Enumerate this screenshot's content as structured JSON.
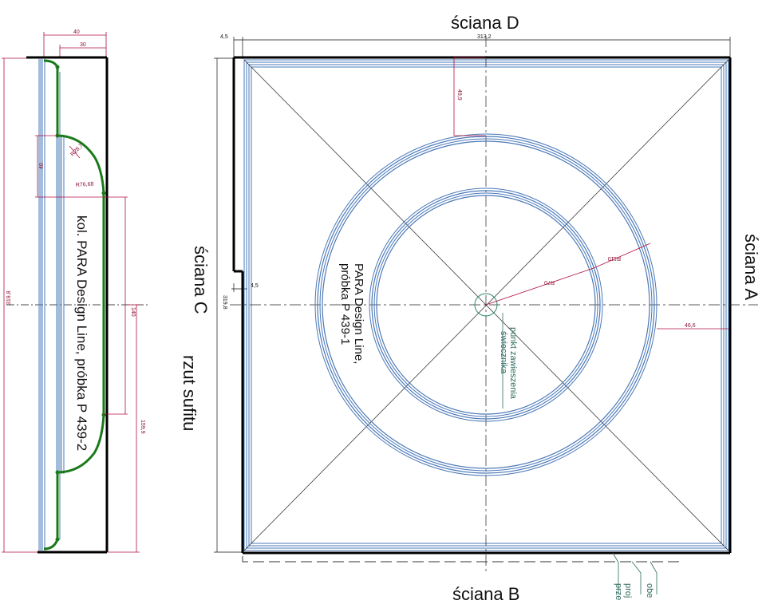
{
  "walls": {
    "top": "ściana D",
    "right": "ściana A",
    "bottom": "ściana B",
    "left": "ściana C"
  },
  "view_title": "rzut sufitu",
  "samples": {
    "section": "kol. PARA Design Line, próbka P 439-2",
    "plan_line1": "PARA Design Line,",
    "plan_line2": "próbka P 439-1"
  },
  "notes": {
    "hanging_point_line1": "punkt zawieszenia",
    "hanging_point_line2": "świecznika",
    "bottom_note1": "obe",
    "bottom_note2": "proj",
    "bottom_note3": "prze"
  },
  "dimensions": {
    "section_width_outer": "40",
    "section_width_inner": "30",
    "section_height": "319,8",
    "section_profile_height": "40",
    "section_r1": "R28,7",
    "section_r2": "R76,68",
    "section_center_span": "140",
    "section_lower": "159,9",
    "plan_offset_top": "4,5",
    "plan_width": "313,2",
    "plan_ring_offset": "49,9",
    "plan_height": "319,8",
    "plan_offset_left": "4,5",
    "plan_r_inner": "R70",
    "plan_r_outer": "R110",
    "plan_side_offset": "46,6"
  },
  "colors": {
    "frame": "#000000",
    "blue_lines": "#4a78b8",
    "green_profile": "#1a7a1a",
    "dimension": "#b01040",
    "note": "#2e6b5e"
  }
}
